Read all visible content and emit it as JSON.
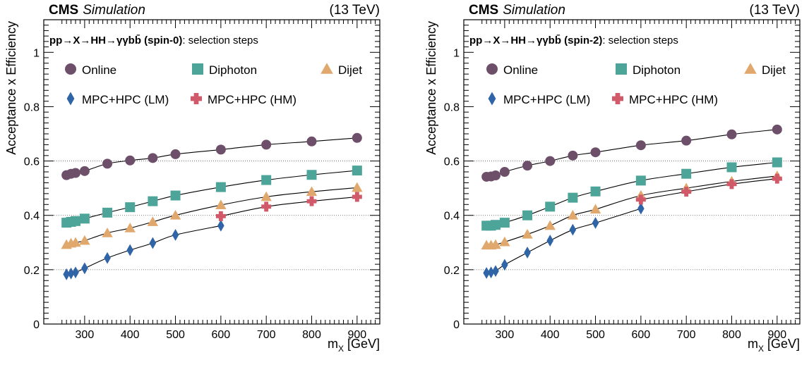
{
  "chart_data": [
    {
      "type": "scatter",
      "experiment": "CMS",
      "status": "Simulation",
      "energy": "(13 TeV)",
      "process_html": "pp→X→HH→γγbb̄",
      "process_suffix": " (spin-0)",
      "process_tail": ": selection steps",
      "xlabel_main": "m",
      "xlabel_sub": "X",
      "xlabel_unit": " [GeV]",
      "ylabel": "Acceptance x Efficiency",
      "xlim": [
        210,
        950
      ],
      "ylim": [
        0,
        1.12
      ],
      "xticks": [
        300,
        400,
        500,
        600,
        700,
        800,
        900
      ],
      "yticks": [
        0,
        0.2,
        0.4,
        0.6,
        0.8,
        1
      ],
      "grid_y": [
        0.2,
        0.4,
        0.6
      ],
      "legend": "top-left",
      "series": [
        {
          "name": "Online",
          "marker": "circle",
          "color": "#6e4f6a",
          "x": [
            260,
            270,
            280,
            300,
            350,
            400,
            450,
            500,
            600,
            700,
            800,
            900
          ],
          "y": [
            0.548,
            0.553,
            0.556,
            0.563,
            0.59,
            0.602,
            0.611,
            0.625,
            0.642,
            0.66,
            0.672,
            0.685
          ]
        },
        {
          "name": "Diphoton",
          "marker": "square",
          "color": "#4da59a",
          "x": [
            260,
            270,
            280,
            300,
            350,
            400,
            450,
            500,
            600,
            700,
            800,
            900
          ],
          "y": [
            0.373,
            0.376,
            0.379,
            0.388,
            0.41,
            0.43,
            0.452,
            0.473,
            0.504,
            0.53,
            0.549,
            0.565
          ]
        },
        {
          "name": "Dijet",
          "marker": "triangle",
          "color": "#e0a86c",
          "x": [
            260,
            270,
            280,
            300,
            350,
            400,
            450,
            500,
            600,
            700,
            800,
            900
          ],
          "y": [
            0.292,
            0.297,
            0.3,
            0.307,
            0.335,
            0.353,
            0.376,
            0.4,
            0.438,
            0.468,
            0.487,
            0.502
          ]
        },
        {
          "name": "MPC+HPC (LM)",
          "marker": "diamond",
          "color": "#2f64a6",
          "x": [
            260,
            270,
            280,
            300,
            350,
            400,
            450,
            500,
            600
          ],
          "y": [
            0.183,
            0.186,
            0.19,
            0.205,
            0.243,
            0.272,
            0.298,
            0.328,
            0.362
          ]
        },
        {
          "name": "MPC+HPC (HM)",
          "marker": "cross",
          "color": "#d05a6a",
          "x": [
            600,
            700,
            800,
            900
          ],
          "y": [
            0.397,
            0.432,
            0.452,
            0.468
          ]
        }
      ]
    },
    {
      "type": "scatter",
      "experiment": "CMS",
      "status": "Simulation",
      "energy": "(13 TeV)",
      "process_html": "pp→X→HH→γγbb̄",
      "process_suffix": " (spin-2)",
      "process_tail": ": selection steps",
      "xlabel_main": "m",
      "xlabel_sub": "X",
      "xlabel_unit": " [GeV]",
      "ylabel": "Acceptance x Efficiency",
      "xlim": [
        210,
        950
      ],
      "ylim": [
        0,
        1.12
      ],
      "xticks": [
        300,
        400,
        500,
        600,
        700,
        800,
        900
      ],
      "yticks": [
        0,
        0.2,
        0.4,
        0.6,
        0.8,
        1
      ],
      "grid_y": [
        0.2,
        0.4,
        0.6
      ],
      "legend": "top-left",
      "series": [
        {
          "name": "Online",
          "marker": "circle",
          "color": "#6e4f6a",
          "x": [
            260,
            270,
            280,
            300,
            350,
            400,
            450,
            500,
            600,
            700,
            800,
            900
          ],
          "y": [
            0.542,
            0.543,
            0.547,
            0.56,
            0.583,
            0.6,
            0.62,
            0.632,
            0.658,
            0.675,
            0.698,
            0.716
          ]
        },
        {
          "name": "Diphoton",
          "marker": "square",
          "color": "#4da59a",
          "x": [
            260,
            270,
            280,
            300,
            350,
            400,
            450,
            500,
            600,
            700,
            800,
            900
          ],
          "y": [
            0.362,
            0.362,
            0.365,
            0.373,
            0.4,
            0.432,
            0.465,
            0.488,
            0.528,
            0.553,
            0.577,
            0.595
          ]
        },
        {
          "name": "Dijet",
          "marker": "triangle",
          "color": "#e0a86c",
          "x": [
            260,
            270,
            280,
            300,
            350,
            400,
            450,
            500,
            600,
            700,
            800,
            900
          ],
          "y": [
            0.29,
            0.29,
            0.292,
            0.302,
            0.33,
            0.362,
            0.4,
            0.422,
            0.473,
            0.5,
            0.525,
            0.545
          ]
        },
        {
          "name": "MPC+HPC (LM)",
          "marker": "diamond",
          "color": "#2f64a6",
          "x": [
            260,
            270,
            280,
            300,
            350,
            400,
            450,
            500,
            600
          ],
          "y": [
            0.188,
            0.19,
            0.195,
            0.218,
            0.263,
            0.307,
            0.347,
            0.372,
            0.425
          ]
        },
        {
          "name": "MPC+HPC (HM)",
          "marker": "cross",
          "color": "#d05a6a",
          "x": [
            600,
            700,
            800,
            900
          ],
          "y": [
            0.458,
            0.487,
            0.515,
            0.535
          ]
        }
      ]
    }
  ]
}
